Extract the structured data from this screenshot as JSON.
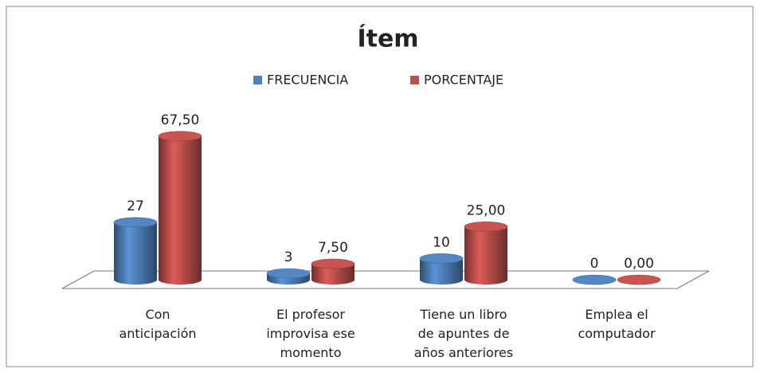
{
  "chart_data": {
    "type": "bar3d",
    "title": "Ítem",
    "categories": [
      "Con anticipación",
      "El profesor improvisa ese momento",
      "Tiene un libro de apuntes de años anteriores",
      "Emplea el computador"
    ],
    "series": [
      {
        "name": "FRECUENCIA",
        "color": "#4f81bd",
        "values": [
          27,
          3,
          10,
          0
        ]
      },
      {
        "name": "PORCENTAJE",
        "color": "#c0504d",
        "values": [
          67.5,
          7.5,
          25,
          0
        ],
        "value_labels": [
          "67,50",
          "7,50",
          "25,00",
          "0,00"
        ]
      }
    ],
    "legend": "top"
  }
}
